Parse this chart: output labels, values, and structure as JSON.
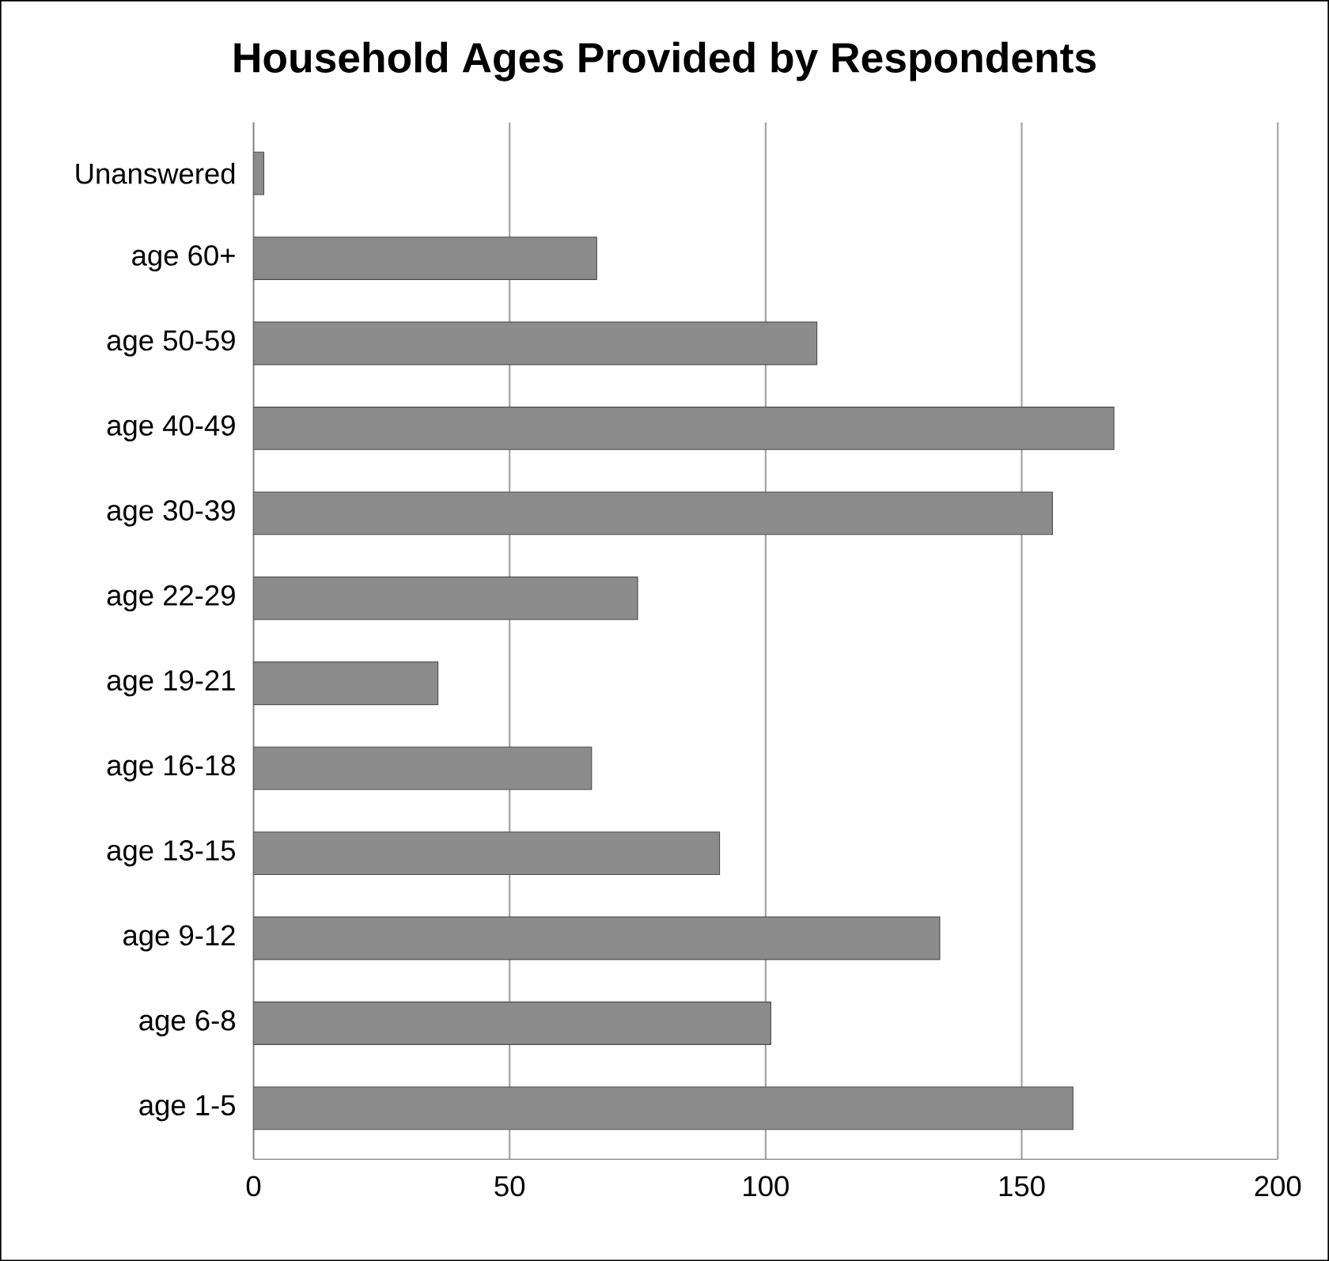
{
  "chart_data": {
    "type": "bar",
    "orientation": "horizontal",
    "title": "Household Ages Provided by Respondents",
    "categories": [
      "Unanswered",
      "age 60+",
      "age 50-59",
      "age 40-49",
      "age 30-39",
      "age 22-29",
      "age 19-21",
      "age 16-18",
      "age 13-15",
      "age 9-12",
      "age 6-8",
      "age 1-5"
    ],
    "values": [
      2,
      67,
      110,
      168,
      156,
      75,
      36,
      66,
      91,
      134,
      101,
      160
    ],
    "color": "#8c8c8c",
    "xlim": [
      0,
      200
    ],
    "xticks": [
      0,
      50,
      100,
      150,
      200
    ],
    "grid": "x"
  }
}
